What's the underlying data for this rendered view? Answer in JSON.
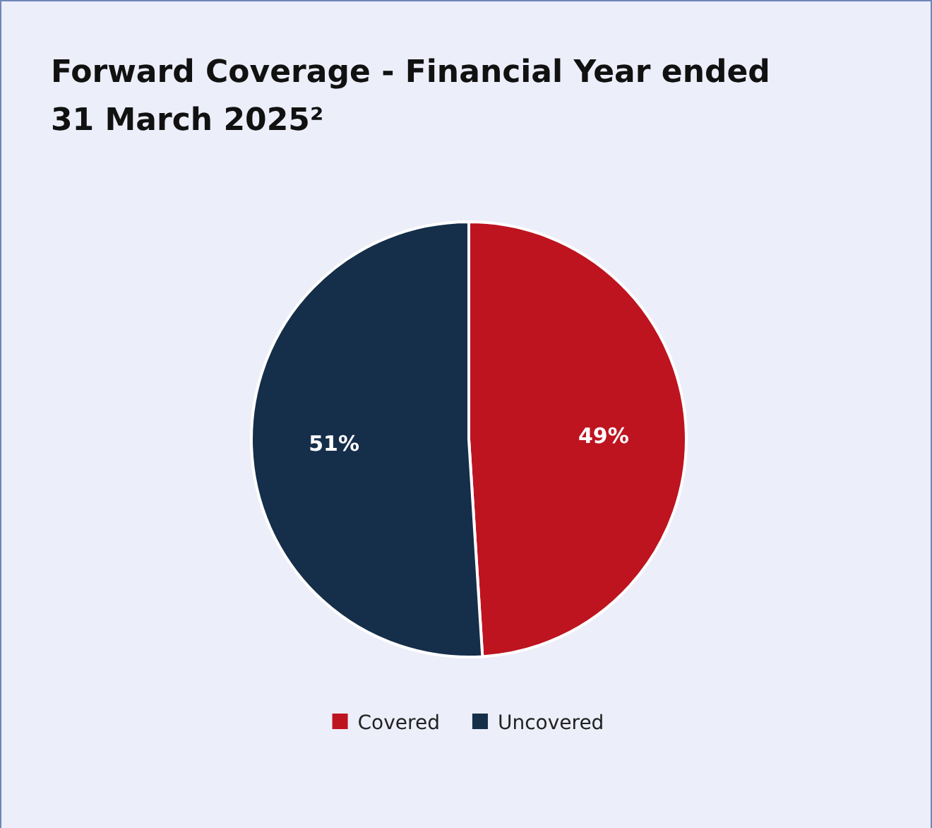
{
  "chart_data": {
    "type": "pie",
    "title": "Forward Coverage - Financial Year ended 31 March 2025²",
    "categories": [
      "Covered",
      "Uncovered"
    ],
    "values": [
      49,
      51
    ],
    "colors": [
      "#be1420",
      "#152e4a"
    ],
    "value_labels": [
      "49%",
      "51%"
    ],
    "legend": "bottom"
  }
}
